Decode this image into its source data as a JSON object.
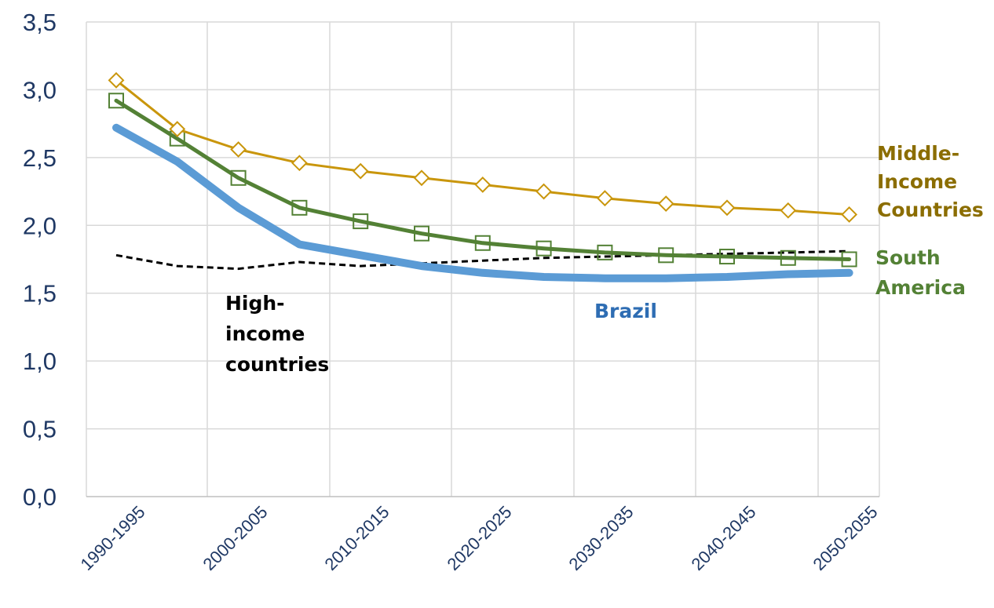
{
  "chart_data": {
    "type": "line",
    "title": "",
    "xlabel": "",
    "ylabel": "",
    "ylim": [
      0,
      3.5
    ],
    "grid": true,
    "y_ticks": [
      "0,0",
      "0,5",
      "1,0",
      "1,5",
      "2,0",
      "2,5",
      "3,0",
      "3,5"
    ],
    "x_ticks": [
      "1990-1995",
      "2000-2005",
      "2010-2015",
      "2020-2025",
      "2030-2035",
      "2040-2045",
      "2050-2055"
    ],
    "series": [
      {
        "label": [
          "Middle-",
          "Income",
          "Countries"
        ],
        "color": "#c9960c",
        "label_color": "#8b6d00",
        "marker": "diamond",
        "values": [
          3.07,
          2.71,
          2.56,
          2.46,
          2.4,
          2.35,
          2.3,
          2.25,
          2.2,
          2.16,
          2.13,
          2.11,
          2.08
        ]
      },
      {
        "label": [
          "South",
          "America"
        ],
        "color": "#538135",
        "label_color": "#538135",
        "marker": "square",
        "values": [
          2.92,
          2.64,
          2.35,
          2.13,
          2.03,
          1.94,
          1.87,
          1.83,
          1.8,
          1.78,
          1.77,
          1.76,
          1.75
        ]
      },
      {
        "label": [
          "Brazil"
        ],
        "color": "#5b9bd5",
        "label_color": "#2e6db3",
        "marker": "none",
        "values": [
          2.72,
          2.47,
          2.13,
          1.86,
          1.78,
          1.7,
          1.65,
          1.62,
          1.61,
          1.61,
          1.62,
          1.64,
          1.65
        ]
      },
      {
        "label": [
          "High-",
          "income",
          "countries"
        ],
        "color": "#000000",
        "label_color": "#000000",
        "marker": "none",
        "dashed": true,
        "values": [
          1.78,
          1.7,
          1.68,
          1.73,
          1.7,
          1.72,
          1.74,
          1.76,
          1.77,
          1.78,
          1.79,
          1.8,
          1.81
        ]
      }
    ]
  }
}
